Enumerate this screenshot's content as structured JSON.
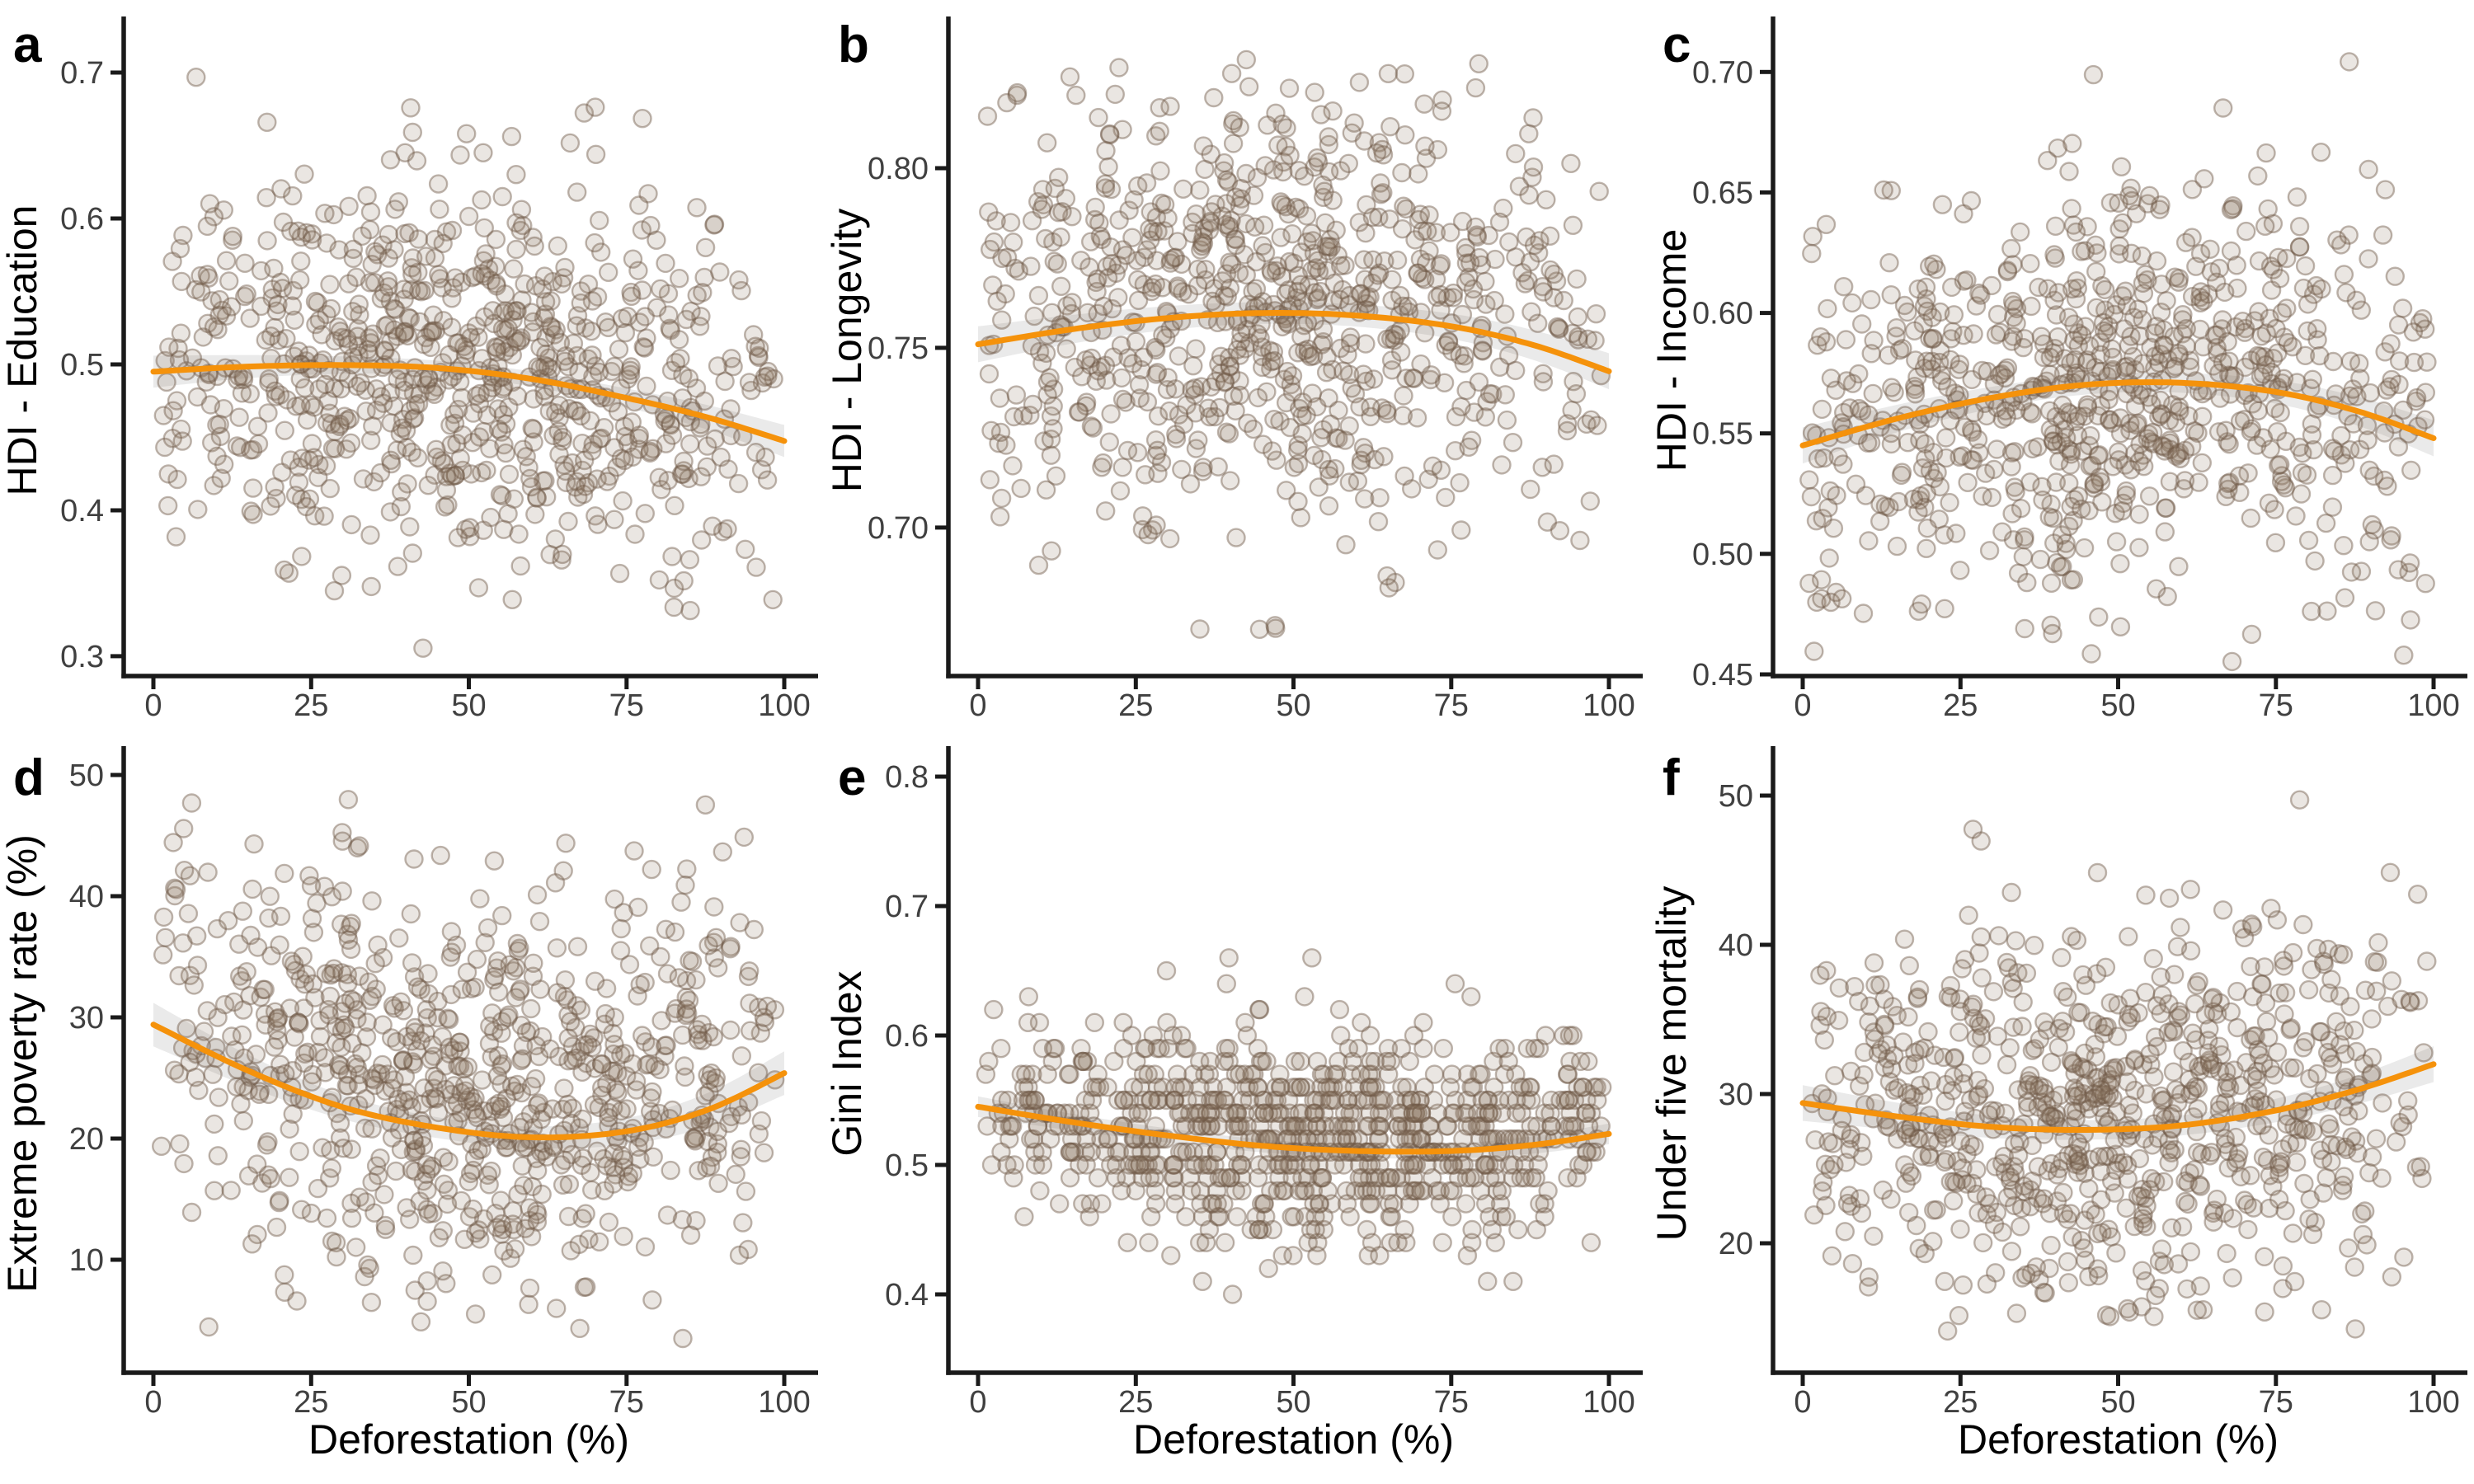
{
  "figure": {
    "description": "Six-panel scatter figure of socioeconomic indicators versus deforestation percentage, each with an orange polynomial smooth and gray confidence band",
    "background": "#ffffff",
    "style": {
      "axis_color": "#1a1a1a",
      "tick_label_color": "#404040",
      "title_color": "#000000",
      "panel_letter_color": "#000000",
      "point_fill": "#8c7361",
      "point_fill_opacity": 0.18,
      "point_stroke": "#6f5846",
      "point_stroke_opacity": 0.45,
      "point_radius": 10.5,
      "trend_color": "#f5920b",
      "trend_width": 7,
      "band_color": "#dedede",
      "band_opacity": 0.65
    },
    "x_axis": {
      "title": "Deforestation (%)",
      "min": 0,
      "max": 100,
      "tick_values": [
        0,
        25,
        50,
        75,
        100
      ],
      "tick_labels": [
        "0",
        "25",
        "50",
        "75",
        "100"
      ]
    }
  },
  "chart_data": [
    {
      "type": "scatter",
      "row": 0,
      "panel_label": "a",
      "ylabel": "HDI - Education",
      "xlabel": "",
      "x_tick_labels": [
        "0",
        "25",
        "50",
        "75",
        "100"
      ],
      "y_tick_values": [
        0.3,
        0.4,
        0.5,
        0.6,
        0.7
      ],
      "y_tick_labels": [
        "0.3",
        "0.4",
        "0.5",
        "0.6",
        "0.7"
      ],
      "ylim_edges": [
        0.2864,
        0.7328
      ],
      "trend_line": [
        [
          0,
          0.495
        ],
        [
          15,
          0.4985
        ],
        [
          30,
          0.4995
        ],
        [
          45,
          0.4975
        ],
        [
          60,
          0.49
        ],
        [
          75,
          0.477
        ],
        [
          88,
          0.4635
        ],
        [
          100,
          0.4475
        ]
      ],
      "ci_halfwidth": {
        "mid": 0.005,
        "end": 0.011
      },
      "scatter_summary": {
        "n": 800,
        "sd": 0.066,
        "mean_offset": 0.006,
        "clip": [
          0.302,
          0.714
        ],
        "seed": 101,
        "quantize": 0
      }
    },
    {
      "type": "scatter",
      "row": 0,
      "panel_label": "b",
      "ylabel": "HDI - Longevity",
      "xlabel": "",
      "x_tick_labels": [
        "0",
        "25",
        "50",
        "75",
        "100"
      ],
      "y_tick_values": [
        0.7,
        0.75,
        0.8
      ],
      "y_tick_labels": [
        "0.70",
        "0.75",
        "0.80"
      ],
      "ylim_edges": [
        0.6587,
        0.8399
      ],
      "trend_line": [
        [
          0,
          0.751
        ],
        [
          15,
          0.7552
        ],
        [
          30,
          0.7583
        ],
        [
          45,
          0.7597
        ],
        [
          60,
          0.759
        ],
        [
          75,
          0.756
        ],
        [
          88,
          0.7508
        ],
        [
          100,
          0.7435
        ]
      ],
      "ci_halfwidth": {
        "mid": 0.003,
        "end": 0.005
      },
      "scatter_summary": {
        "n": 800,
        "sd": 0.031,
        "mean_offset": 0.004,
        "clip": [
          0.67,
          0.831
        ],
        "seed": 202,
        "quantize": 0
      }
    },
    {
      "type": "scatter",
      "row": 0,
      "panel_label": "c",
      "ylabel": "HDI - Income",
      "xlabel": "",
      "x_tick_labels": [
        "0",
        "25",
        "50",
        "75",
        "100"
      ],
      "y_tick_values": [
        0.45,
        0.5,
        0.55,
        0.6,
        0.65,
        0.7
      ],
      "y_tick_labels": [
        "0.45",
        "0.50",
        "0.55",
        "0.60",
        "0.65",
        "0.70"
      ],
      "ylim_edges": [
        0.4493,
        0.7196
      ],
      "trend_line": [
        [
          0,
          0.545
        ],
        [
          15,
          0.5562
        ],
        [
          30,
          0.5648
        ],
        [
          45,
          0.5702
        ],
        [
          60,
          0.571
        ],
        [
          75,
          0.5672
        ],
        [
          88,
          0.5592
        ],
        [
          100,
          0.548
        ]
      ],
      "ci_halfwidth": {
        "mid": 0.004,
        "end": 0.0075
      },
      "scatter_summary": {
        "n": 800,
        "sd": 0.042,
        "mean_offset": 0.002,
        "clip": [
          0.454,
          0.706
        ],
        "seed": 303,
        "quantize": 0
      }
    },
    {
      "type": "scatter",
      "row": 1,
      "panel_label": "d",
      "ylabel": "Extreme poverty rate (%)",
      "xlabel": "Deforestation (%)",
      "x_tick_labels": [
        "0",
        "25",
        "50",
        "75",
        "100"
      ],
      "y_tick_values": [
        10,
        20,
        30,
        40,
        50
      ],
      "y_tick_labels": [
        "10",
        "20",
        "30",
        "40",
        "50"
      ],
      "ylim_edges": [
        0.68,
        51.7
      ],
      "trend_line": [
        [
          0,
          29.4
        ],
        [
          15,
          25.6
        ],
        [
          30,
          22.6
        ],
        [
          45,
          20.9
        ],
        [
          60,
          20.1
        ],
        [
          75,
          20.6
        ],
        [
          88,
          22.4
        ],
        [
          100,
          25.4
        ]
      ],
      "ci_halfwidth": {
        "mid": 0.85,
        "end": 1.8
      },
      "scatter_summary": {
        "n": 800,
        "sd": 8.4,
        "mean_offset": 2.8,
        "clip": [
          3.0,
          48.2
        ],
        "seed": 404,
        "quantize": 0
      }
    },
    {
      "type": "scatter",
      "row": 1,
      "panel_label": "e",
      "ylabel": "Gini Index",
      "xlabel": "Deforestation (%)",
      "x_tick_labels": [
        "0",
        "25",
        "50",
        "75",
        "100"
      ],
      "y_tick_values": [
        0.4,
        0.5,
        0.6,
        0.7,
        0.8
      ],
      "y_tick_labels": [
        "0.4",
        "0.5",
        "0.6",
        "0.7",
        "0.8"
      ],
      "ylim_edges": [
        0.3395,
        0.8172
      ],
      "trend_line": [
        [
          0,
          0.545
        ],
        [
          15,
          0.533
        ],
        [
          30,
          0.5228
        ],
        [
          45,
          0.5148
        ],
        [
          60,
          0.5108
        ],
        [
          75,
          0.5108
        ],
        [
          88,
          0.5155
        ],
        [
          100,
          0.524
        ]
      ],
      "ci_halfwidth": {
        "mid": 0.005,
        "end": 0.008
      },
      "scatter_summary": {
        "n": 820,
        "sd": 0.04,
        "mean_offset": 0.006,
        "clip": [
          0.365,
          0.788
        ],
        "seed": 505,
        "quantize": 0.01
      }
    },
    {
      "type": "scatter",
      "row": 1,
      "panel_label": "f",
      "ylabel": "Under five mortality",
      "xlabel": "Deforestation (%)",
      "x_tick_labels": [
        "0",
        "25",
        "50",
        "75",
        "100"
      ],
      "y_tick_values": [
        20,
        30,
        40,
        50
      ],
      "y_tick_labels": [
        "20",
        "30",
        "40",
        "50"
      ],
      "ylim_edges": [
        11.33,
        52.76
      ],
      "trend_line": [
        [
          0,
          29.4
        ],
        [
          15,
          28.5
        ],
        [
          30,
          27.8
        ],
        [
          45,
          27.6
        ],
        [
          60,
          27.9
        ],
        [
          75,
          28.9
        ],
        [
          88,
          30.3
        ],
        [
          100,
          32.0
        ]
      ],
      "ci_halfwidth": {
        "mid": 0.65,
        "end": 1.2
      },
      "scatter_summary": {
        "n": 800,
        "sd": 6.4,
        "mean_offset": 0.5,
        "clip": [
          13.6,
          50.4
        ],
        "seed": 606,
        "quantize": 0
      }
    }
  ]
}
